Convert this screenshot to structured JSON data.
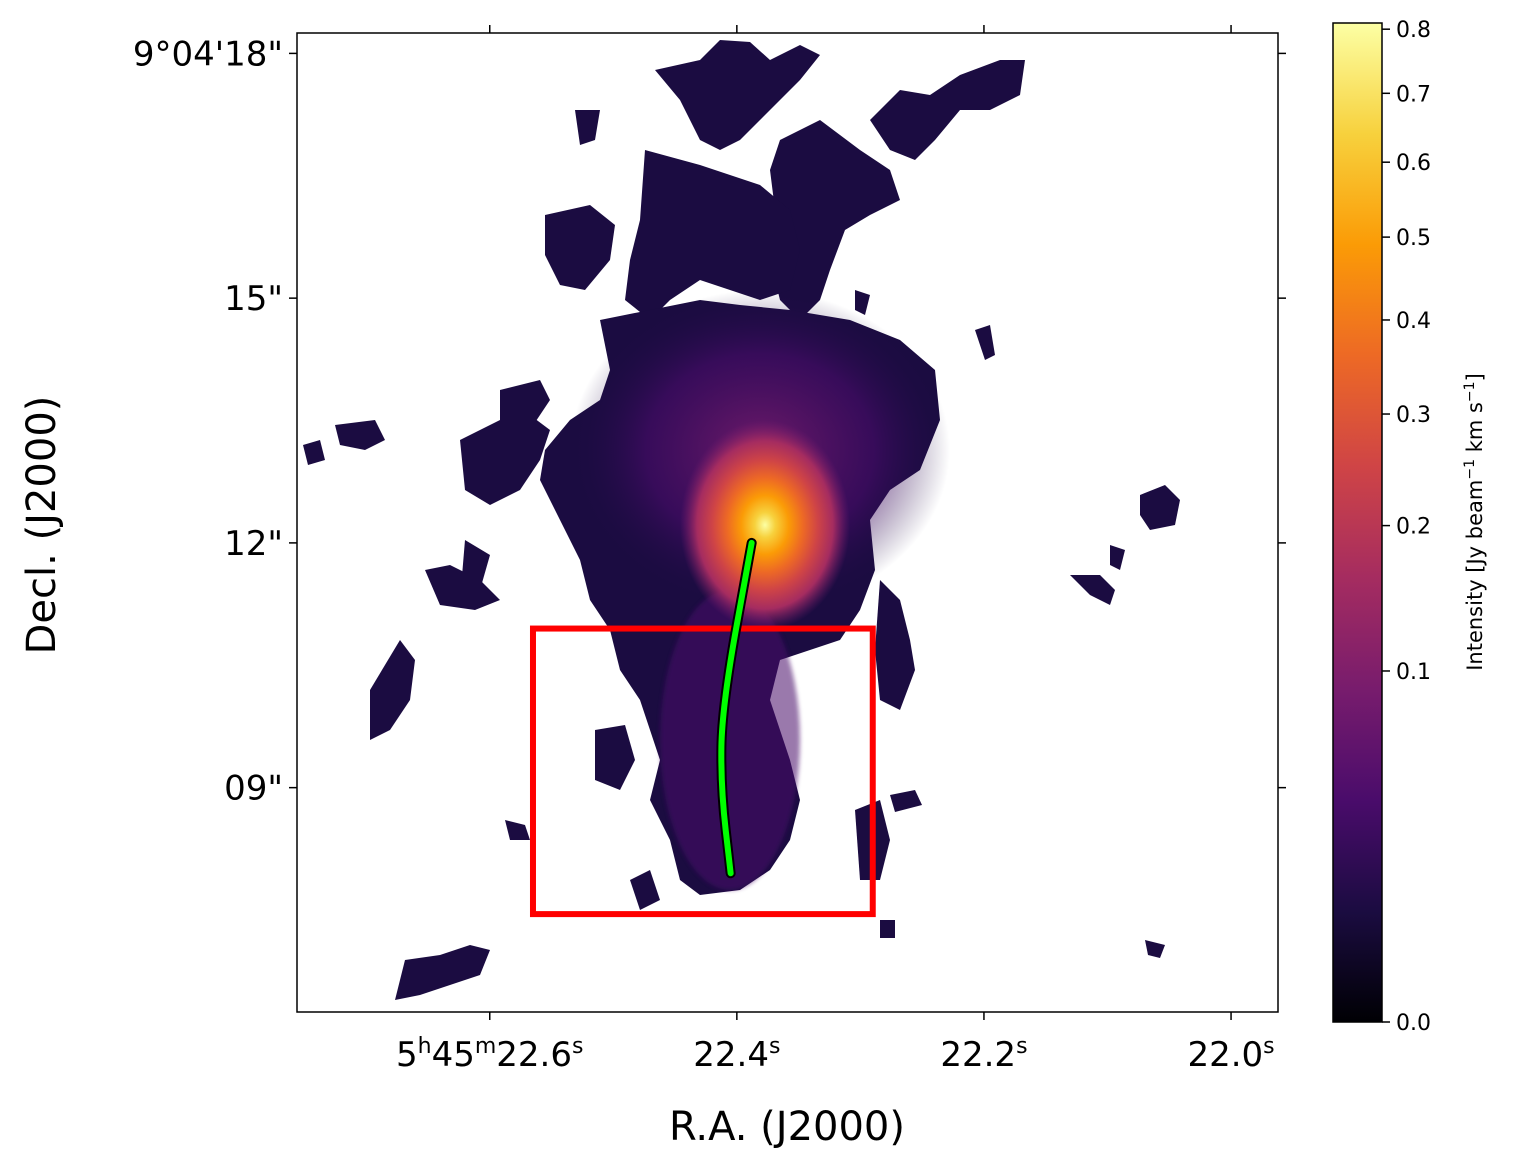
{
  "chart_data": {
    "type": "heatmap",
    "title": "",
    "xlabel": "R.A. (J2000)",
    "ylabel": "Decl. (J2000)",
    "x_ticks": [
      {
        "label_parts": [
          "5",
          "h",
          "45",
          "m",
          "22.6",
          "s"
        ],
        "value": 22.6
      },
      {
        "label_parts": [
          "22.4",
          "s"
        ],
        "value": 22.4
      },
      {
        "label_parts": [
          "22.2",
          "s"
        ],
        "value": 22.2
      },
      {
        "label_parts": [
          "22.0",
          "s"
        ],
        "value": 22.0
      }
    ],
    "y_ticks": [
      {
        "label": "9°04'18\"",
        "value": 18
      },
      {
        "label": "15\"",
        "value": 15
      },
      {
        "label": "12\"",
        "value": 12
      },
      {
        "label": "09\"",
        "value": 9
      }
    ],
    "xlim": [
      22.756,
      21.962
    ],
    "ylim": [
      6.25,
      18.25
    ],
    "colorbar": {
      "label_parts": [
        "Intensity [Jy beam",
        "−1",
        " km s",
        "−1",
        "]"
      ],
      "scale": "sqrt",
      "range": [
        0.0,
        0.81
      ],
      "ticks": [
        "0.0",
        "0.1",
        "0.2",
        "0.3",
        "0.4",
        "0.5",
        "0.6",
        "0.7",
        "0.8"
      ],
      "colormap": [
        "#000004",
        "#1b0c41",
        "#4a0c6b",
        "#781c6d",
        "#a52c60",
        "#cf4446",
        "#ed6925",
        "#fb9b06",
        "#f7d13d",
        "#fcffa4"
      ]
    },
    "peak": {
      "ra": 22.38,
      "dec": 12.35,
      "value": 0.8
    },
    "overlays": {
      "box": {
        "color": "#ff0000",
        "ra_range": [
          22.565,
          22.29
        ],
        "dec_range": [
          7.45,
          10.95
        ]
      },
      "curve": {
        "color": "#00ff00",
        "points": [
          [
            22.388,
            12.0
          ],
          [
            22.412,
            10.0
          ],
          [
            22.413,
            9.0
          ],
          [
            22.405,
            7.95
          ]
        ]
      }
    }
  }
}
